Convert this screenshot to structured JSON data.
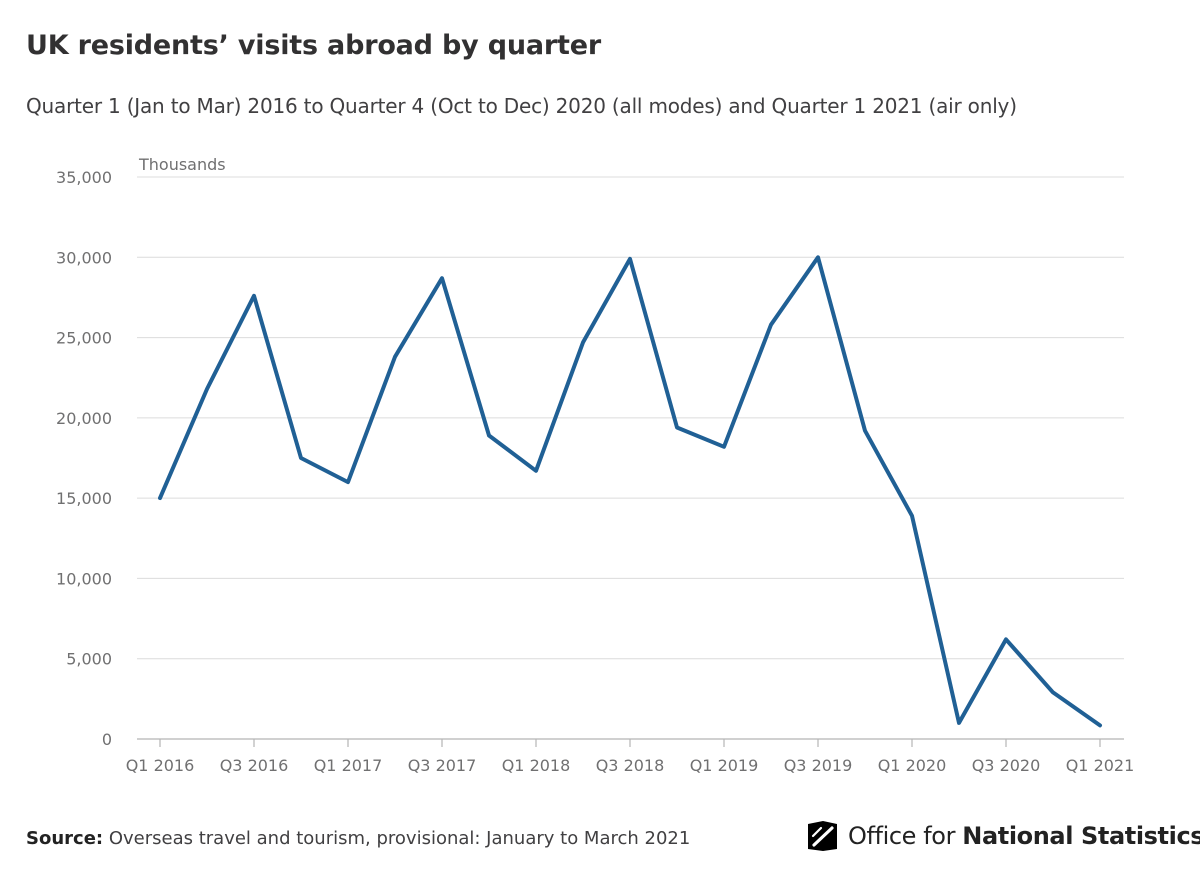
{
  "header": {
    "title": "UK residents’ visits abroad by quarter",
    "subtitle": "Quarter 1 (Jan to Mar) 2016 to Quarter 4 (Oct to Dec) 2020 (all modes) and Quarter 1 2021 (air only)"
  },
  "chart_data": {
    "type": "line",
    "title": "UK residents’ visits abroad by quarter",
    "subtitle": "Quarter 1 (Jan to Mar) 2016 to Quarter 4 (Oct to Dec) 2020 (all modes) and Quarter 1 2021 (air only)",
    "ylabel": "Thousands",
    "xlabel": "",
    "ylim": [
      0,
      35000
    ],
    "yticks": [
      0,
      5000,
      10000,
      15000,
      20000,
      25000,
      30000,
      35000
    ],
    "ytick_labels": [
      "0",
      "5,000",
      "10,000",
      "15,000",
      "20,000",
      "25,000",
      "30,000",
      "35,000"
    ],
    "grid": true,
    "line_color": "#206095",
    "categories": [
      "Q1 2016",
      "Q2 2016",
      "Q3 2016",
      "Q4 2016",
      "Q1 2017",
      "Q2 2017",
      "Q3 2017",
      "Q4 2017",
      "Q1 2018",
      "Q2 2018",
      "Q3 2018",
      "Q4 2018",
      "Q1 2019",
      "Q2 2019",
      "Q3 2019",
      "Q4 2019",
      "Q1 2020",
      "Q2 2020",
      "Q3 2020",
      "Q4 2020",
      "Q1 2021"
    ],
    "xtick_labels": [
      "Q1 2016",
      "Q3 2016",
      "Q1 2017",
      "Q3 2017",
      "Q1 2018",
      "Q3 2018",
      "Q1 2019",
      "Q3 2019",
      "Q1 2020",
      "Q3 2020",
      "Q1 2021"
    ],
    "series": [
      {
        "name": "UK residents’ visits abroad",
        "values": [
          15000,
          21800,
          27600,
          17500,
          16000,
          23800,
          28700,
          18900,
          16700,
          24700,
          29900,
          19400,
          18200,
          25800,
          30000,
          19200,
          13900,
          1000,
          6200,
          2900,
          850
        ]
      }
    ]
  },
  "footer": {
    "source_label": "Source:",
    "source_text": " Overseas travel and tourism, provisional: January to March 2021",
    "brand_prefix": "Office for ",
    "brand_bold": "National Statistics"
  }
}
